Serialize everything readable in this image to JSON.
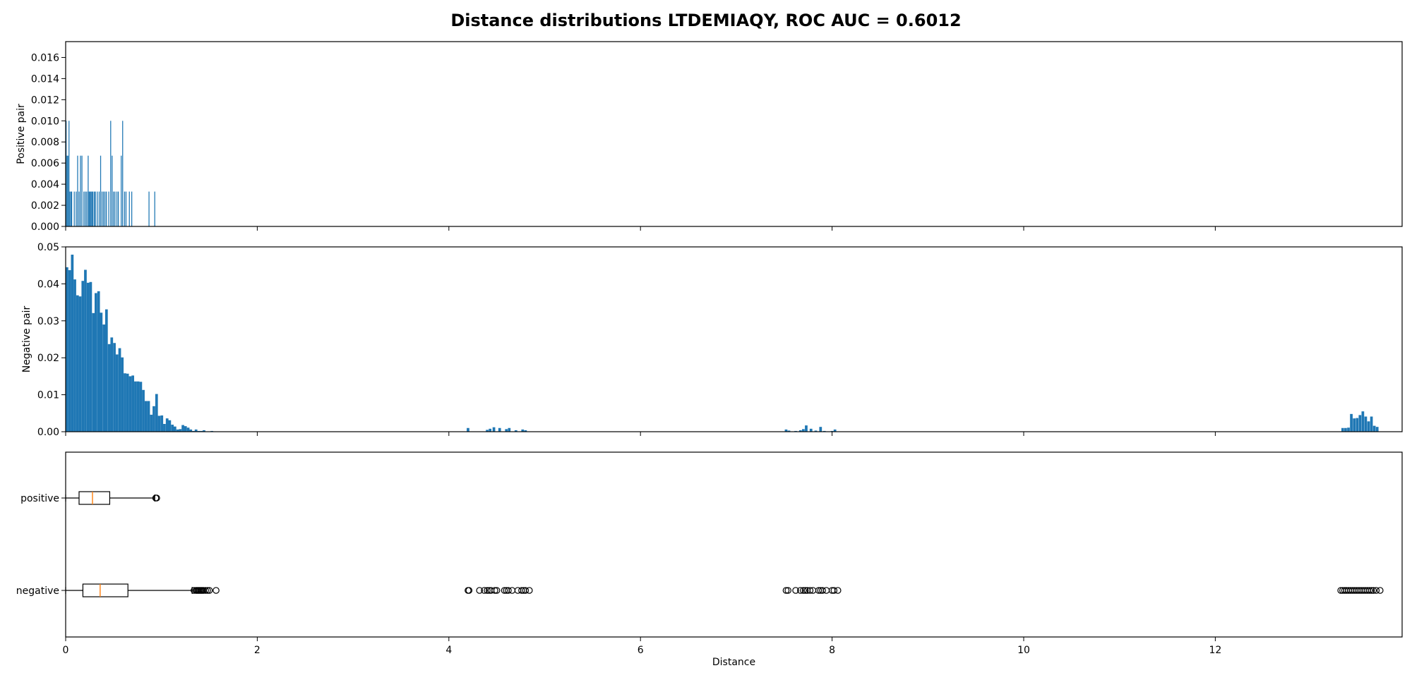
{
  "figure": {
    "title": "Distance distributions LTDEMIAQY, ROC AUC = 0.6012"
  },
  "chart_data": [
    {
      "type": "bar",
      "panel": "positive-histogram",
      "xlabel": "",
      "ylabel": "Positive pair",
      "xlim": [
        0,
        13.95
      ],
      "ylim": [
        0,
        0.0175
      ],
      "xticks": [
        0,
        2,
        4,
        6,
        8,
        10,
        12
      ],
      "yticks": [
        0.0,
        0.002,
        0.004,
        0.006,
        0.008,
        0.01,
        0.012,
        0.014,
        0.016
      ],
      "ytick_labels": [
        "0.000",
        "0.002",
        "0.004",
        "0.006",
        "0.008",
        "0.010",
        "0.012",
        "0.014",
        "0.016"
      ],
      "show_xtick_labels": false,
      "bin_width": 0.0093,
      "bar_color": "#1f77b4",
      "x": [
        0.005,
        0.015,
        0.024,
        0.035,
        0.043,
        0.055,
        0.063,
        0.09,
        0.11,
        0.125,
        0.14,
        0.155,
        0.17,
        0.19,
        0.205,
        0.22,
        0.235,
        0.245,
        0.255,
        0.265,
        0.275,
        0.285,
        0.3,
        0.31,
        0.33,
        0.35,
        0.365,
        0.38,
        0.395,
        0.41,
        0.425,
        0.45,
        0.47,
        0.485,
        0.5,
        0.515,
        0.535,
        0.55,
        0.58,
        0.595,
        0.615,
        0.63,
        0.665,
        0.69,
        0.87,
        0.93
      ],
      "values": [
        0.01,
        0.0067,
        0.0067,
        0.01,
        0.0033,
        0.0033,
        0.0033,
        0.0033,
        0.0033,
        0.0067,
        0.0033,
        0.0067,
        0.0067,
        0.0033,
        0.0033,
        0.0033,
        0.0067,
        0.0033,
        0.0033,
        0.0033,
        0.0033,
        0.0033,
        0.0033,
        0.0033,
        0.0033,
        0.0033,
        0.0067,
        0.0033,
        0.0033,
        0.0033,
        0.0033,
        0.0033,
        0.01,
        0.0067,
        0.0033,
        0.0033,
        0.0033,
        0.0033,
        0.0067,
        0.01,
        0.0033,
        0.0033,
        0.0033,
        0.0033,
        0.0033,
        0.0033
      ]
    },
    {
      "type": "bar",
      "panel": "negative-histogram",
      "xlabel": "",
      "ylabel": "Negative pair",
      "xlim": [
        0,
        13.95
      ],
      "ylim": [
        0,
        0.05
      ],
      "xticks": [
        0,
        2,
        4,
        6,
        8,
        10,
        12
      ],
      "yticks": [
        0.0,
        0.01,
        0.02,
        0.03,
        0.04,
        0.05
      ],
      "ytick_labels": [
        "0.00",
        "0.01",
        "0.02",
        "0.03",
        "0.04",
        "0.05"
      ],
      "show_xtick_labels": false,
      "bin_width": 0.0275,
      "bar_color": "#1f77b4",
      "x": [
        0.014,
        0.041,
        0.069,
        0.096,
        0.124,
        0.151,
        0.179,
        0.206,
        0.234,
        0.261,
        0.289,
        0.316,
        0.344,
        0.371,
        0.399,
        0.426,
        0.454,
        0.481,
        0.509,
        0.536,
        0.564,
        0.591,
        0.619,
        0.646,
        0.674,
        0.701,
        0.729,
        0.756,
        0.784,
        0.811,
        0.839,
        0.866,
        0.894,
        0.921,
        0.949,
        0.976,
        1.004,
        1.031,
        1.059,
        1.086,
        1.114,
        1.141,
        1.169,
        1.196,
        1.224,
        1.251,
        1.279,
        1.306,
        1.334,
        1.361,
        1.389,
        1.416,
        1.444,
        1.471,
        1.499,
        1.526,
        1.554,
        4.2,
        4.4,
        4.43,
        4.47,
        4.53,
        4.6,
        4.63,
        4.7,
        4.77,
        4.8,
        7.52,
        7.55,
        7.62,
        7.67,
        7.7,
        7.73,
        7.78,
        7.83,
        7.88,
        7.92,
        8.0,
        8.03,
        13.33,
        13.36,
        13.39,
        13.42,
        13.45,
        13.48,
        13.51,
        13.54,
        13.57,
        13.6,
        13.63,
        13.66,
        13.69
      ],
      "values": [
        0.0445,
        0.0437,
        0.0479,
        0.0412,
        0.0369,
        0.0366,
        0.0408,
        0.0438,
        0.0403,
        0.0405,
        0.0321,
        0.0375,
        0.038,
        0.0322,
        0.029,
        0.0331,
        0.0237,
        0.0255,
        0.024,
        0.0209,
        0.0226,
        0.0201,
        0.0158,
        0.0157,
        0.015,
        0.0152,
        0.0136,
        0.0136,
        0.0135,
        0.0113,
        0.0083,
        0.0083,
        0.0046,
        0.0069,
        0.0102,
        0.0043,
        0.0044,
        0.0021,
        0.0036,
        0.0031,
        0.0019,
        0.0014,
        0.0006,
        0.0007,
        0.0018,
        0.0015,
        0.0011,
        0.0006,
        0.0002,
        0.0006,
        0.0002,
        0.0002,
        0.0004,
        0.0001,
        0.0001,
        0.0002,
        0.0001,
        0.001,
        0.0005,
        0.0008,
        0.0012,
        0.001,
        0.0007,
        0.001,
        0.0004,
        0.0006,
        0.0004,
        0.0006,
        0.0003,
        0.0002,
        0.0004,
        0.0007,
        0.0017,
        0.0008,
        0.0003,
        0.0013,
        0.0002,
        0.0002,
        0.0006,
        0.001,
        0.001,
        0.0011,
        0.0048,
        0.0036,
        0.0037,
        0.0045,
        0.0055,
        0.0041,
        0.0028,
        0.0041,
        0.0016,
        0.0013
      ]
    },
    {
      "type": "boxplot",
      "panel": "boxplot",
      "xlabel": "Distance",
      "xlim": [
        0,
        13.95
      ],
      "xticks": [
        0,
        2,
        4,
        6,
        8,
        10,
        12
      ],
      "xtick_labels": [
        "0",
        "2",
        "4",
        "6",
        "8",
        "10",
        "12"
      ],
      "categories": [
        "positive",
        "negative"
      ],
      "median_color": "#ff7f0e",
      "boxes": [
        {
          "label": "positive",
          "whisker_low": 0.0,
          "q1": 0.14,
          "median": 0.28,
          "q3": 0.46,
          "whisker_high": 0.93,
          "outliers": [
            0.94,
            0.95
          ]
        },
        {
          "label": "negative",
          "whisker_low": 0.0,
          "q1": 0.18,
          "median": 0.36,
          "q3": 0.65,
          "whisker_high": 1.32,
          "outliers": [
            1.34,
            1.36,
            1.37,
            1.38,
            1.39,
            1.4,
            1.41,
            1.42,
            1.43,
            1.44,
            1.46,
            1.48,
            1.5,
            1.57,
            4.2,
            4.21,
            4.32,
            4.37,
            4.4,
            4.42,
            4.44,
            4.48,
            4.5,
            4.58,
            4.6,
            4.62,
            4.66,
            4.72,
            4.76,
            4.78,
            4.8,
            4.84,
            7.52,
            7.54,
            7.62,
            7.67,
            7.7,
            7.72,
            7.74,
            7.77,
            7.8,
            7.86,
            7.88,
            7.9,
            7.94,
            8.0,
            8.02,
            8.06,
            13.31,
            13.33,
            13.35,
            13.37,
            13.39,
            13.41,
            13.43,
            13.45,
            13.47,
            13.49,
            13.51,
            13.53,
            13.55,
            13.57,
            13.59,
            13.61,
            13.63,
            13.65,
            13.68,
            13.72
          ]
        }
      ]
    }
  ]
}
